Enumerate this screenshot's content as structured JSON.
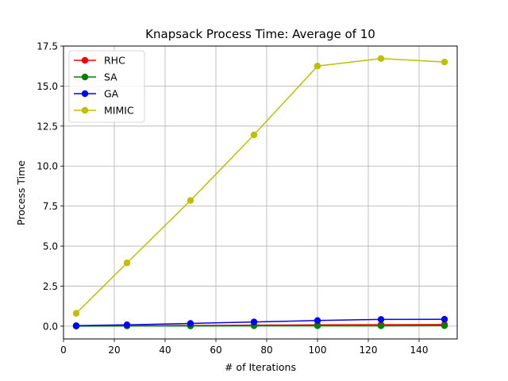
{
  "chart_data": {
    "type": "line",
    "title": "Knapsack Process Time: Average of 10",
    "xlabel": "# of Iterations",
    "ylabel": "Process Time",
    "x": [
      5,
      25,
      50,
      75,
      100,
      125,
      150
    ],
    "xlim": [
      0,
      155
    ],
    "ylim": [
      -0.8,
      17.5
    ],
    "xticks": [
      0,
      20,
      40,
      60,
      80,
      100,
      120,
      140
    ],
    "yticks": [
      0.0,
      2.5,
      5.0,
      7.5,
      10.0,
      12.5,
      15.0,
      17.5
    ],
    "grid": true,
    "legend_position": "top-left",
    "series": [
      {
        "name": "RHC",
        "color": "#ff0000",
        "values": [
          0.01,
          0.02,
          0.04,
          0.06,
          0.08,
          0.09,
          0.1
        ]
      },
      {
        "name": "SA",
        "color": "#008000",
        "values": [
          0.0,
          0.01,
          0.01,
          0.02,
          0.02,
          0.02,
          0.03
        ]
      },
      {
        "name": "GA",
        "color": "#0000ff",
        "values": [
          0.03,
          0.08,
          0.17,
          0.26,
          0.35,
          0.42,
          0.43
        ]
      },
      {
        "name": "MIMIC",
        "color": "#bfbf00",
        "values": [
          0.8,
          3.95,
          7.85,
          11.95,
          16.25,
          16.72,
          16.5
        ]
      }
    ]
  }
}
